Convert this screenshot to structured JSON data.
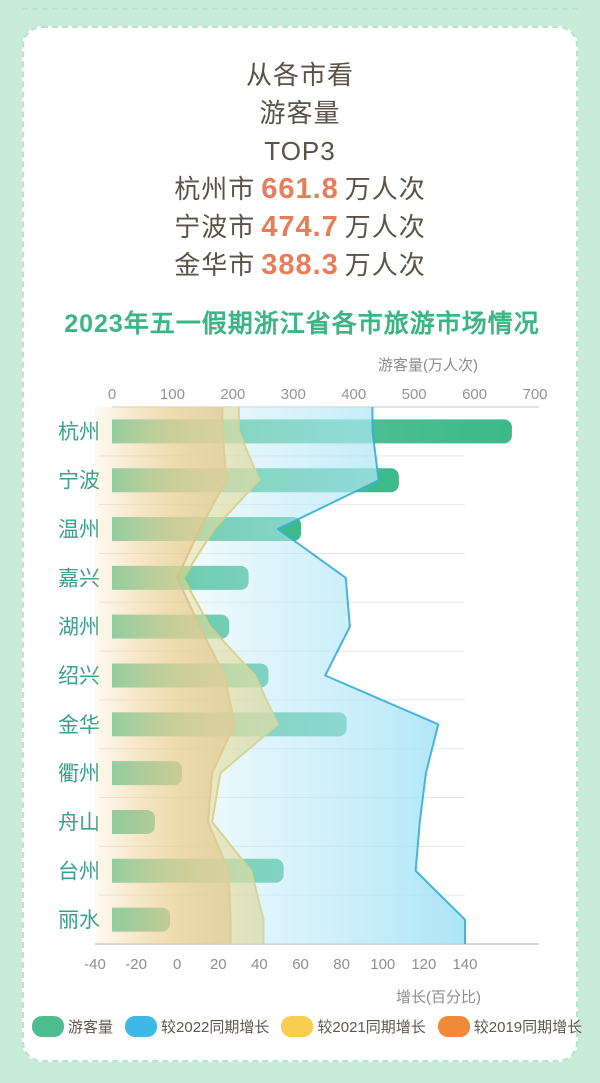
{
  "header": {
    "lines": [
      "从各市看",
      "游客量",
      "TOP3"
    ],
    "stats": [
      {
        "city": "杭州市",
        "value": "661.8",
        "unit": "万人次"
      },
      {
        "city": "宁波市",
        "value": "474.7",
        "unit": "万人次"
      },
      {
        "city": "金华市",
        "value": "388.3",
        "unit": "万人次"
      }
    ]
  },
  "chart_title": "2023年五一假期浙江省各市旅游市场情况",
  "chart_data": {
    "type": "bar",
    "orientation": "horizontal",
    "categories": [
      "杭州",
      "宁波",
      "温州",
      "嘉兴",
      "湖州",
      "绍兴",
      "金华",
      "衢州",
      "舟山",
      "台州",
      "丽水"
    ],
    "bar_series": {
      "name": "游客量",
      "axis": "top",
      "unit": "万人次",
      "values": [
        661.8,
        474.7,
        313,
        226,
        194,
        259,
        388.3,
        116,
        71,
        284,
        96
      ]
    },
    "area_series": [
      {
        "name": "较2022同期增长",
        "axis": "bottom",
        "unit": "%",
        "values": [
          95,
          98,
          49,
          82,
          84,
          72,
          127,
          121,
          118,
          116,
          140
        ]
      },
      {
        "name": "较2021同期增长",
        "axis": "bottom",
        "unit": "%",
        "values": [
          30,
          40,
          18,
          3,
          16,
          38,
          49,
          21,
          17,
          36,
          42
        ]
      },
      {
        "name": "较2019同期增长",
        "axis": "bottom",
        "unit": "%",
        "values": [
          22,
          24,
          11,
          0,
          11,
          23,
          28,
          17,
          15,
          25,
          26
        ]
      }
    ],
    "top_axis": {
      "title": "游客量(万人次)",
      "ticks": [
        0,
        100,
        200,
        300,
        400,
        500,
        600,
        700
      ],
      "range": [
        0,
        700
      ]
    },
    "bottom_axis": {
      "title": "增长(百分比)",
      "ticks": [
        -40,
        -20,
        0,
        20,
        40,
        60,
        80,
        100,
        120,
        140
      ],
      "range": [
        -40,
        140
      ]
    },
    "legend": [
      {
        "label": "游客量",
        "color": "#4dbd90"
      },
      {
        "label": "较2022同期增长",
        "color": "#3db9e5"
      },
      {
        "label": "较2021同期增长",
        "color": "#f6cf51"
      },
      {
        "label": "较2019同期增长",
        "color": "#ef8a39"
      }
    ],
    "grid": "horizontal row separators",
    "legend_position": "bottom-left"
  },
  "colors": {
    "page_background": "#c8ecd8",
    "card_background": "#ffffff",
    "card_border": "#b7e4ca",
    "header_text": "#5a5248",
    "stat_number": "#e87d5a",
    "title_green": "#3cb585",
    "category_label": "#3ba08d",
    "bar_green_light": "#63c99e",
    "bar_green_dark": "#3db98a",
    "area_blue_stroke": "#34aed6",
    "area_yellow_stroke": "#e4bd3e",
    "area_orange_stroke": "#e0802e",
    "tick_label": "#949494"
  }
}
